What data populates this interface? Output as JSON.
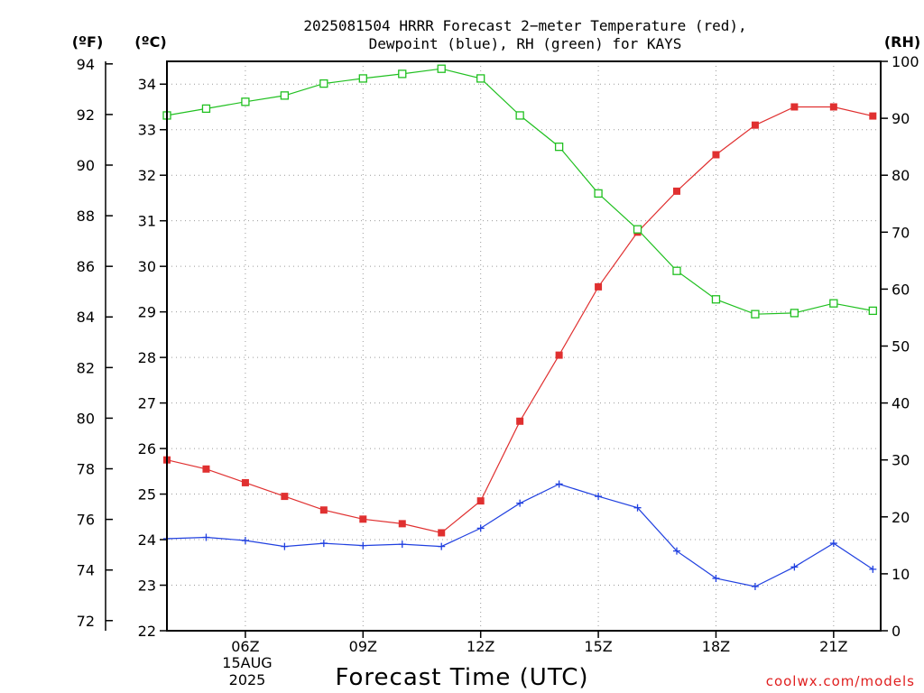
{
  "chart_data": {
    "type": "line",
    "title_lines": [
      "2025081504 HRRR Forecast 2−meter Temperature (red),",
      "Dewpoint (blue), RH (green) for KAYS"
    ],
    "xlabel": "Forecast Time (UTC)",
    "credit": "coolwx.com/models",
    "left_unit_f": "(ºF)",
    "left_unit_c": "(ºC)",
    "right_unit": "(RH)",
    "x_hours_utc": [
      4,
      5,
      6,
      7,
      8,
      9,
      10,
      11,
      12,
      13,
      14,
      15,
      16,
      17,
      18,
      19,
      20,
      21,
      22
    ],
    "x_range_hours": [
      4,
      22.2
    ],
    "x_ticks": [
      {
        "hour": 6,
        "label": "06Z"
      },
      {
        "hour": 9,
        "label": "09Z"
      },
      {
        "hour": 12,
        "label": "12Z"
      },
      {
        "hour": 15,
        "label": "15Z"
      },
      {
        "hour": 18,
        "label": "18Z"
      },
      {
        "hour": 21,
        "label": "21Z"
      }
    ],
    "date_label_lines": [
      "15AUG",
      "2025"
    ],
    "celsius_axis": {
      "range": [
        22,
        34.5
      ],
      "ticks": [
        22,
        23,
        24,
        25,
        26,
        27,
        28,
        29,
        30,
        31,
        32,
        33,
        34
      ]
    },
    "fahrenheit_ticks": [
      72,
      74,
      76,
      78,
      80,
      82,
      84,
      86,
      88,
      90,
      92,
      94
    ],
    "rh_axis": {
      "range": [
        0,
        100
      ],
      "ticks": [
        0,
        10,
        20,
        30,
        40,
        50,
        60,
        70,
        80,
        90,
        100
      ]
    },
    "grid": true,
    "series": [
      {
        "name": "Temperature (red)",
        "axis": "celsius",
        "color": "#e03030",
        "marker": "filled-square",
        "values": [
          25.75,
          25.55,
          25.25,
          24.95,
          24.65,
          24.45,
          24.35,
          24.15,
          24.85,
          26.6,
          28.05,
          29.55,
          30.75,
          31.65,
          32.45,
          33.1,
          33.5,
          33.5,
          33.3
        ]
      },
      {
        "name": "Dewpoint (blue)",
        "axis": "celsius",
        "color": "#2040e0",
        "marker": "plus",
        "values": [
          24.02,
          24.05,
          23.98,
          23.85,
          23.92,
          23.87,
          23.9,
          23.85,
          24.25,
          24.8,
          25.22,
          24.95,
          24.7,
          23.75,
          23.15,
          22.97,
          23.4,
          23.92,
          23.35
        ]
      },
      {
        "name": "RH (green)",
        "axis": "rh",
        "color": "#20c020",
        "marker": "open-square",
        "values": [
          90.5,
          91.7,
          92.9,
          94.0,
          96.1,
          97.0,
          97.8,
          98.7,
          97.0,
          90.5,
          85.0,
          76.8,
          70.5,
          63.2,
          58.2,
          55.6,
          55.8,
          57.5,
          56.2
        ]
      }
    ]
  }
}
